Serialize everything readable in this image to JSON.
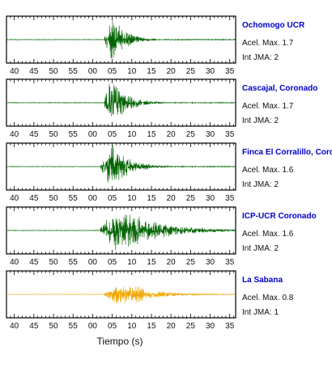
{
  "chart_data": {
    "type": "line",
    "xlabel": "Tiempo (s)",
    "x_tick_labels": [
      "40",
      "45",
      "50",
      "55",
      "00",
      "05",
      "10",
      "15",
      "20",
      "25",
      "30",
      "35"
    ],
    "xlim_seconds": [
      38,
      96.5
    ],
    "panels": [
      {
        "station": "Ochomogo UCR",
        "accel_text": "Acel. Max. 1.7",
        "jma_text": "Int JMA: 2",
        "color": "#006400",
        "onset_s": 63,
        "peak_s": 65,
        "duration_s": 12,
        "peak_amplitude": 1.7,
        "series_style": "impulsive"
      },
      {
        "station": "Cascajal, Coronado",
        "accel_text": "Acel. Max. 1.7",
        "jma_text": "Int JMA: 2",
        "color": "#006400",
        "onset_s": 63,
        "peak_s": 64.5,
        "duration_s": 14,
        "peak_amplitude": 1.7,
        "series_style": "impulsive"
      },
      {
        "station": "Finca El Corralillo, Coronado",
        "accel_text": "Acel. Max. 1.6",
        "jma_text": "Int JMA: 2",
        "color": "#006400",
        "onset_s": 62,
        "peak_s": 65,
        "duration_s": 15,
        "peak_amplitude": 1.6,
        "series_style": "impulsive"
      },
      {
        "station": "ICP-UCR Coronado",
        "accel_text": "Acel. Max. 1.6",
        "jma_text": "Int JMA: 2",
        "color": "#006400",
        "onset_s": 62,
        "peak_s": 66,
        "duration_s": 18,
        "peak_amplitude": 1.6,
        "series_style": "sustained"
      },
      {
        "station": "La Sabana",
        "accel_text": "Acel. Max. 0.8",
        "jma_text": "Int JMA: 1",
        "color": "#f2a700",
        "onset_s": 63,
        "peak_s": 67,
        "duration_s": 14,
        "peak_amplitude": 0.8,
        "series_style": "sustained"
      }
    ]
  }
}
